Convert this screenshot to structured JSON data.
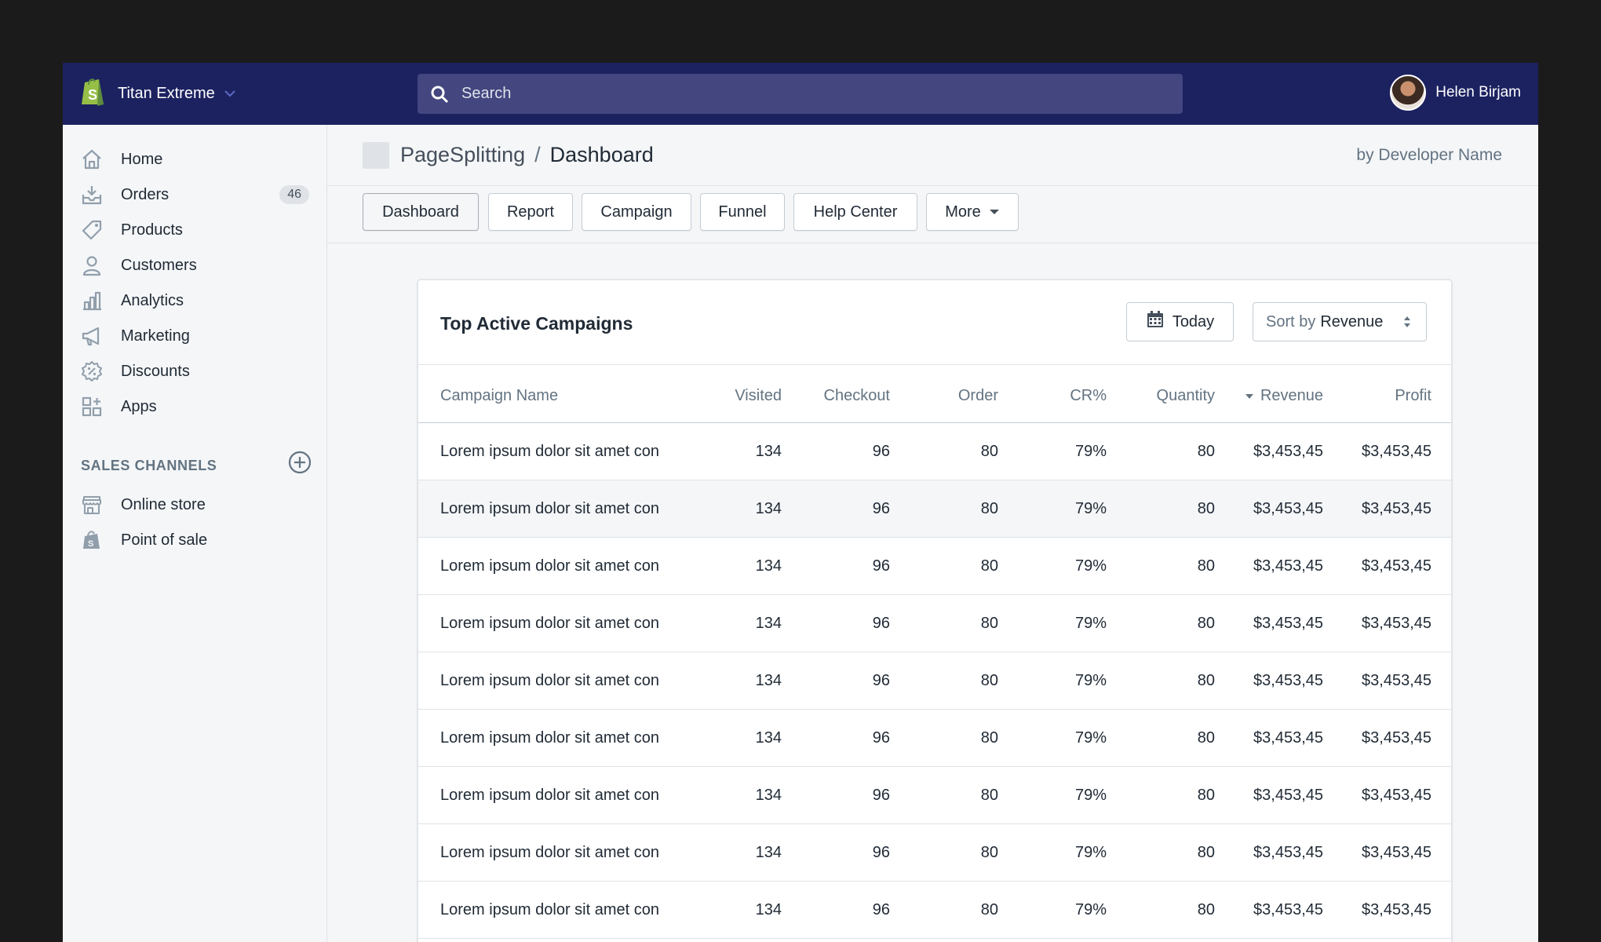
{
  "topbar": {
    "store_name": "Titan Extreme",
    "search_placeholder": "Search",
    "user_name": "Helen Birjam"
  },
  "sidebar": {
    "items": [
      {
        "label": "Home",
        "icon": "home-icon"
      },
      {
        "label": "Orders",
        "icon": "orders-icon",
        "badge": "46"
      },
      {
        "label": "Products",
        "icon": "tag-icon"
      },
      {
        "label": "Customers",
        "icon": "person-icon"
      },
      {
        "label": "Analytics",
        "icon": "bar-chart-icon"
      },
      {
        "label": "Marketing",
        "icon": "megaphone-icon"
      },
      {
        "label": "Discounts",
        "icon": "discount-icon"
      },
      {
        "label": "Apps",
        "icon": "apps-icon"
      }
    ],
    "sales_channels_title": "SALES CHANNELS",
    "channels": [
      {
        "label": "Online store",
        "icon": "store-icon"
      },
      {
        "label": "Point of sale",
        "icon": "shopping-bag-icon"
      }
    ]
  },
  "header": {
    "app_name": "PageSplitting",
    "separator": "/",
    "page_title": "Dashboard",
    "developer": "by Developer Name"
  },
  "tabs": [
    "Dashboard",
    "Report",
    "Campaign",
    "Funnel",
    "Help Center",
    "More"
  ],
  "card": {
    "title": "Top Active Campaigns",
    "today_label": "Today",
    "sort_prefix": "Sort by",
    "sort_value": "Revenue"
  },
  "table": {
    "columns": [
      "Campaign Name",
      "Visited",
      "Checkout",
      "Order",
      "CR%",
      "Quantity",
      "Revenue",
      "Profit"
    ],
    "rows": [
      [
        "Lorem ipsum dolor sit amet con",
        "134",
        "96",
        "80",
        "79%",
        "80",
        "$3,453,45",
        "$3,453,45"
      ],
      [
        "Lorem ipsum dolor sit amet con",
        "134",
        "96",
        "80",
        "79%",
        "80",
        "$3,453,45",
        "$3,453,45"
      ],
      [
        "Lorem ipsum dolor sit amet con",
        "134",
        "96",
        "80",
        "79%",
        "80",
        "$3,453,45",
        "$3,453,45"
      ],
      [
        "Lorem ipsum dolor sit amet con",
        "134",
        "96",
        "80",
        "79%",
        "80",
        "$3,453,45",
        "$3,453,45"
      ],
      [
        "Lorem ipsum dolor sit amet con",
        "134",
        "96",
        "80",
        "79%",
        "80",
        "$3,453,45",
        "$3,453,45"
      ],
      [
        "Lorem ipsum dolor sit amet con",
        "134",
        "96",
        "80",
        "79%",
        "80",
        "$3,453,45",
        "$3,453,45"
      ],
      [
        "Lorem ipsum dolor sit amet con",
        "134",
        "96",
        "80",
        "79%",
        "80",
        "$3,453,45",
        "$3,453,45"
      ],
      [
        "Lorem ipsum dolor sit amet con",
        "134",
        "96",
        "80",
        "79%",
        "80",
        "$3,453,45",
        "$3,453,45"
      ],
      [
        "Lorem ipsum dolor sit amet con",
        "134",
        "96",
        "80",
        "79%",
        "80",
        "$3,453,45",
        "$3,453,45"
      ]
    ]
  },
  "colors": {
    "topbar": "#1c2260",
    "search": "#43467f",
    "shopify_green": "#95bf47",
    "page_bg": "#f4f6f8",
    "text": "#212b36",
    "muted": "#637381"
  }
}
